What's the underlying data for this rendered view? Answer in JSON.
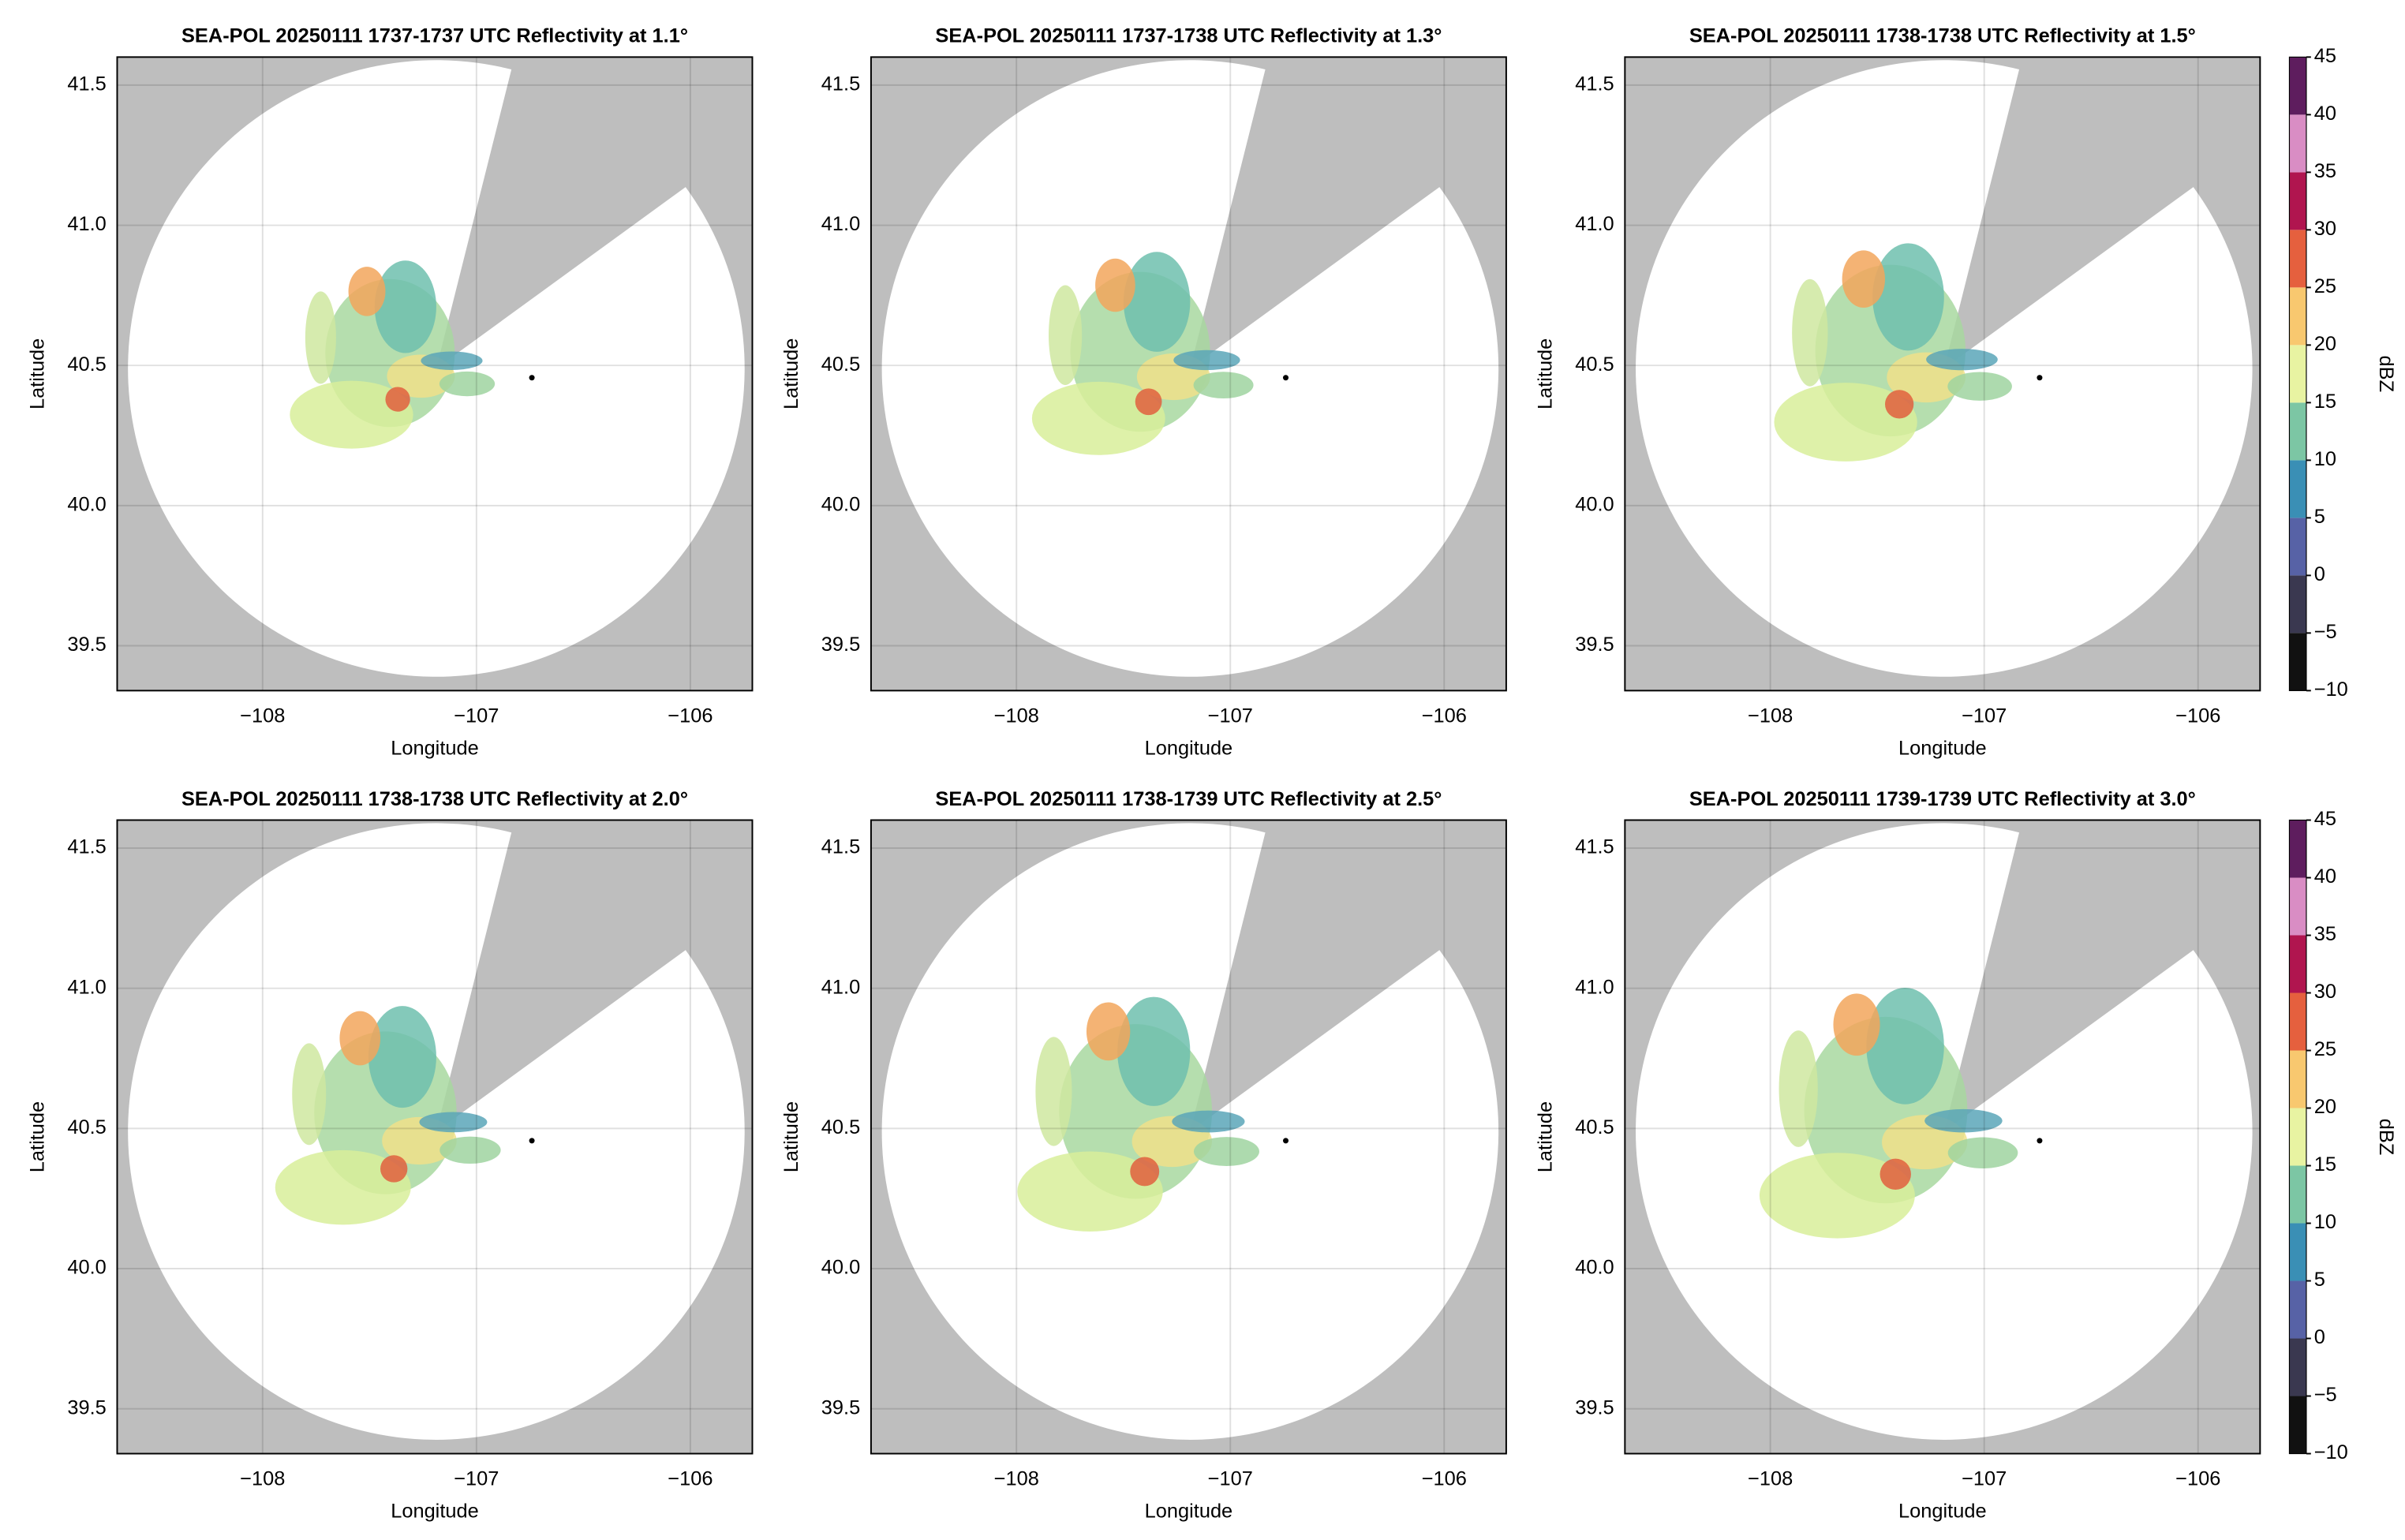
{
  "chart_data": [
    {
      "type": "radar-ppi",
      "title": "SEA-POL 20250111 1737-1737 UTC Reflectivity at 1.1°",
      "xlabel": "Longitude",
      "ylabel": "Latitude",
      "xlim": [
        -108.68,
        -105.71
      ],
      "ylim": [
        39.34,
        41.6
      ],
      "xticks": [
        {
          "value": -108,
          "label": "−108"
        },
        {
          "value": -107,
          "label": "−107"
        },
        {
          "value": -106,
          "label": "−106"
        }
      ],
      "yticks": [
        39.5,
        {
          "value": 40,
          "label": "40.0"
        },
        40.5,
        {
          "value": 41,
          "label": "41.0"
        },
        41.5
      ],
      "grid": true
    },
    {
      "type": "radar-ppi",
      "title": "SEA-POL 20250111 1737-1738 UTC Reflectivity at 1.3°",
      "xlabel": "Longitude",
      "ylabel": "Latitude",
      "xlim": [
        -108.68,
        -105.71
      ],
      "ylim": [
        39.34,
        41.6
      ],
      "xticks": [
        {
          "value": -108,
          "label": "−108"
        },
        {
          "value": -107,
          "label": "−107"
        },
        {
          "value": -106,
          "label": "−106"
        }
      ],
      "yticks": [
        39.5,
        {
          "value": 40,
          "label": "40.0"
        },
        40.5,
        {
          "value": 41,
          "label": "41.0"
        },
        41.5
      ],
      "grid": true
    },
    {
      "type": "radar-ppi",
      "title": "SEA-POL 20250111 1738-1738 UTC Reflectivity at 1.5°",
      "xlabel": "Longitude",
      "ylabel": "Latitude",
      "xlim": [
        -108.68,
        -105.71
      ],
      "ylim": [
        39.34,
        41.6
      ],
      "xticks": [
        {
          "value": -108,
          "label": "−108"
        },
        {
          "value": -107,
          "label": "−107"
        },
        {
          "value": -106,
          "label": "−106"
        }
      ],
      "yticks": [
        39.5,
        {
          "value": 40,
          "label": "40.0"
        },
        40.5,
        {
          "value": 41,
          "label": "41.0"
        },
        41.5
      ],
      "grid": true,
      "colorbar": {
        "label": "dBZ",
        "lim": [
          -10,
          45
        ],
        "ticks": [
          {
            "value": -10,
            "label": "−10"
          },
          {
            "value": -5,
            "label": "−5"
          },
          0,
          5,
          10,
          15,
          20,
          25,
          30,
          35,
          40,
          45
        ],
        "colors": [
          "#111111",
          "#3a3850",
          "#5762a6",
          "#3a8fb5",
          "#7cc6a4",
          "#e8f3a2",
          "#f8c86f",
          "#e5603e",
          "#b0154f",
          "#d98dc4",
          "#5e1d5e"
        ]
      }
    },
    {
      "type": "radar-ppi",
      "title": "SEA-POL 20250111 1738-1738 UTC Reflectivity at 2.0°",
      "xlabel": "Longitude",
      "ylabel": "Latitude",
      "xlim": [
        -108.68,
        -105.71
      ],
      "ylim": [
        39.34,
        41.6
      ],
      "xticks": [
        {
          "value": -108,
          "label": "−108"
        },
        {
          "value": -107,
          "label": "−107"
        },
        {
          "value": -106,
          "label": "−106"
        }
      ],
      "yticks": [
        39.5,
        {
          "value": 40,
          "label": "40.0"
        },
        40.5,
        {
          "value": 41,
          "label": "41.0"
        },
        41.5
      ],
      "grid": true
    },
    {
      "type": "radar-ppi",
      "title": "SEA-POL 20250111 1738-1739 UTC Reflectivity at 2.5°",
      "xlabel": "Longitude",
      "ylabel": "Latitude",
      "xlim": [
        -108.68,
        -105.71
      ],
      "ylim": [
        39.34,
        41.6
      ],
      "xticks": [
        {
          "value": -108,
          "label": "−108"
        },
        {
          "value": -107,
          "label": "−107"
        },
        {
          "value": -106,
          "label": "−106"
        }
      ],
      "yticks": [
        39.5,
        {
          "value": 40,
          "label": "40.0"
        },
        40.5,
        {
          "value": 41,
          "label": "41.0"
        },
        41.5
      ],
      "grid": true
    },
    {
      "type": "radar-ppi",
      "title": "SEA-POL 20250111 1739-1739 UTC Reflectivity at 3.0°",
      "xlabel": "Longitude",
      "ylabel": "Latitude",
      "xlim": [
        -108.68,
        -105.71
      ],
      "ylim": [
        39.34,
        41.6
      ],
      "xticks": [
        {
          "value": -108,
          "label": "−108"
        },
        {
          "value": -107,
          "label": "−107"
        },
        {
          "value": -106,
          "label": "−106"
        }
      ],
      "yticks": [
        39.5,
        {
          "value": 40,
          "label": "40.0"
        },
        40.5,
        {
          "value": 41,
          "label": "41.0"
        },
        41.5
      ],
      "grid": true,
      "colorbar": {
        "label": "dBZ",
        "lim": [
          -10,
          45
        ],
        "ticks": [
          {
            "value": -10,
            "label": "−10"
          },
          {
            "value": -5,
            "label": "−5"
          },
          0,
          5,
          10,
          15,
          20,
          25,
          30,
          35,
          40,
          45
        ],
        "colors": [
          "#111111",
          "#3a3850",
          "#5762a6",
          "#3a8fb5",
          "#7cc6a4",
          "#e8f3a2",
          "#f8c86f",
          "#e5603e",
          "#b0154f",
          "#d98dc4",
          "#5e1d5e"
        ]
      }
    }
  ]
}
